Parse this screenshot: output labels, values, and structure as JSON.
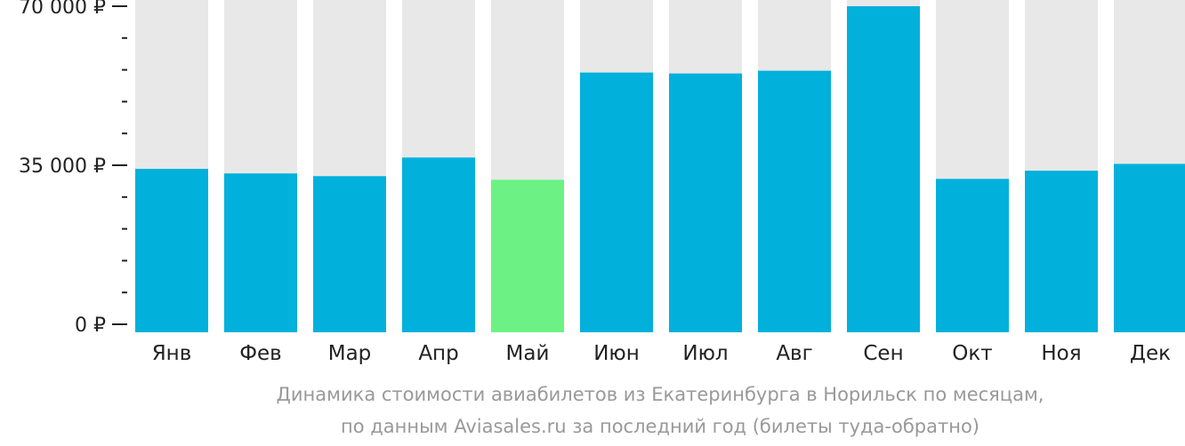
{
  "chart_data": {
    "type": "bar",
    "categories": [
      "Янв",
      "Фев",
      "Мар",
      "Апр",
      "Май",
      "Июн",
      "Июл",
      "Авг",
      "Сен",
      "Окт",
      "Ноя",
      "Дек"
    ],
    "values": [
      34200,
      33200,
      32600,
      36700,
      31800,
      55400,
      55200,
      55800,
      70000,
      32000,
      33800,
      35300
    ],
    "ylim": [
      0,
      70000
    ],
    "yticks": [
      {
        "value": 0,
        "label": "0 ₽"
      },
      {
        "value": 35000,
        "label": "35 000 ₽"
      },
      {
        "value": 70000,
        "label": "70 000 ₽"
      }
    ],
    "minor_ticks": [
      7000,
      14000,
      21000,
      28000,
      42000,
      49000,
      56000,
      63000
    ],
    "highlight_index": 4,
    "colors": {
      "bar": "#02B0DC",
      "highlight": "#6CF184",
      "track": "#E8E8E8",
      "axis": "#222222",
      "caption": "#999999"
    },
    "caption": [
      "Динамика стоимости авиабилетов из Екатеринбурга в Норильск по месяцам,",
      "по данным Aviasales.ru за последний год (билеты туда-обратно)"
    ]
  }
}
